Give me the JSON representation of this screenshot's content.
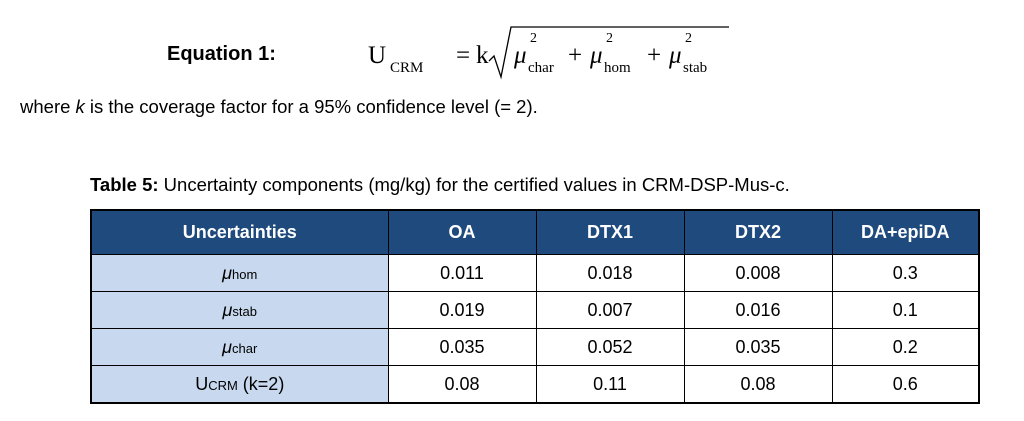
{
  "equation": {
    "label": "Equation 1:",
    "lhs_symbol": "U",
    "lhs_sub": "CRM",
    "equals": "=",
    "coefficient": "k",
    "terms": [
      {
        "symbol": "μ",
        "sub": "char",
        "sup": "2"
      },
      {
        "symbol": "μ",
        "sub": "hom",
        "sup": "2"
      },
      {
        "symbol": "μ",
        "sub": "stab",
        "sup": "2"
      }
    ],
    "operator": "+"
  },
  "note": {
    "prefix": "where ",
    "variable": "k",
    "suffix": " is the coverage factor for a 95% confidence level (= 2)."
  },
  "table": {
    "caption_bold": "Table 5:",
    "caption_text": " Uncertainty components (mg/kg) for the certified values in CRM-DSP-Mus-c.",
    "headers": [
      "Uncertainties",
      "OA",
      "DTX1",
      "DTX2",
      "DA+epiDA"
    ],
    "rows": [
      {
        "label_main": "μ",
        "label_sub": "hom",
        "label_suffix": "",
        "values": [
          "0.011",
          "0.018",
          "0.008",
          "0.3"
        ]
      },
      {
        "label_main": "μ",
        "label_sub": "stab",
        "label_suffix": "",
        "values": [
          "0.019",
          "0.007",
          "0.016",
          "0.1"
        ]
      },
      {
        "label_main": "μ",
        "label_sub": "char",
        "label_suffix": "",
        "values": [
          "0.035",
          "0.052",
          "0.035",
          "0.2"
        ]
      },
      {
        "label_main": "U",
        "label_sub": "CRM",
        "label_suffix": " (k=2)",
        "values": [
          "0.08",
          "0.11",
          "0.08",
          "0.6"
        ]
      }
    ]
  }
}
